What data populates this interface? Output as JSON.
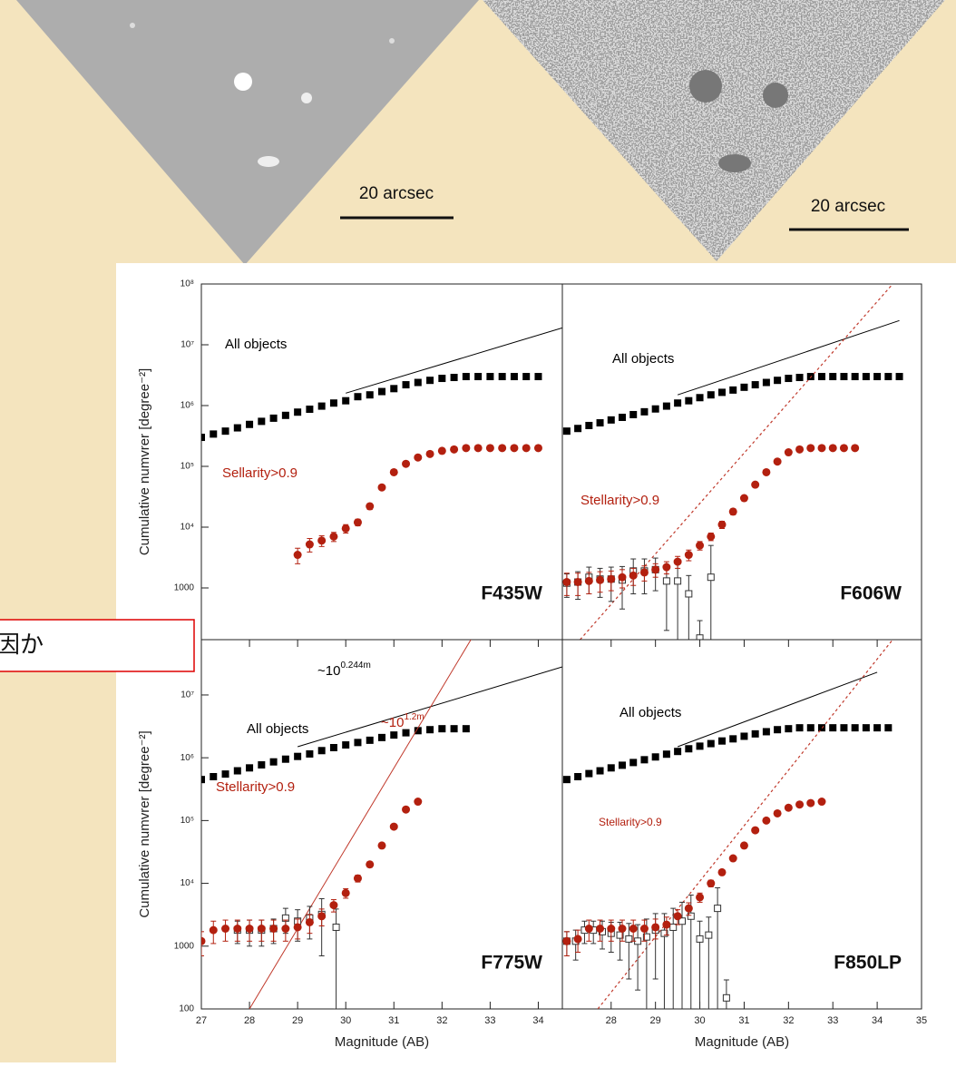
{
  "images": [
    {
      "scale_bar": "20 arcsec"
    },
    {
      "scale_bar": "20 arcsec"
    }
  ],
  "note": "因か",
  "chart_data": [
    {
      "type": "scatter",
      "log_y": true,
      "panel_label": "F435W",
      "ylabel": "Cumulative numvrer  [degree⁻²]",
      "xlim": [
        27,
        34.5
      ],
      "ylim": [
        141,
        100000000
      ],
      "yticks": [
        {
          "value": 100000000,
          "label": "10⁸"
        },
        {
          "value": 10000000,
          "label": "10⁷"
        },
        {
          "value": 1000000,
          "label": "10⁶"
        },
        {
          "value": 100000,
          "label": "10⁵"
        },
        {
          "value": 10000,
          "label": "10⁴"
        },
        1000
      ],
      "series": [
        {
          "name": "All objects",
          "color": "#000000",
          "marker": "square",
          "x": [
            27,
            27.25,
            27.5,
            27.75,
            28,
            28.25,
            28.5,
            28.75,
            29,
            29.25,
            29.5,
            29.75,
            30,
            30.25,
            30.5,
            30.75,
            31,
            31.25,
            31.5,
            31.75,
            32,
            32.25,
            32.5,
            32.75,
            33,
            33.25,
            33.5,
            33.75,
            34
          ],
          "values": [
            300000,
            340000,
            380000,
            430000,
            490000,
            550000,
            620000,
            690000,
            780000,
            870000,
            980000,
            1100000,
            1200000,
            1400000,
            1500000,
            1700000,
            1900000,
            2200000,
            2400000,
            2600000,
            2800000,
            2900000,
            3000000,
            3000000,
            3000000,
            3000000,
            3000000,
            3000000,
            3000000
          ]
        },
        {
          "color": "#000000",
          "marker": "line",
          "x": [
            30,
            34.5
          ],
          "values": [
            1600000,
            19000000
          ]
        },
        {
          "name": "Sellarity>0.9",
          "color": "#b3200f",
          "marker": "circle",
          "x": [
            29,
            29.25,
            29.5,
            29.75,
            30,
            30.25,
            30.5,
            30.75,
            31,
            31.25,
            31.5,
            31.75,
            32,
            32.25,
            32.5,
            32.75,
            33,
            33.25,
            33.5,
            33.75,
            34
          ],
          "values": [
            3500,
            5200,
            6000,
            7000,
            9500,
            12000,
            22000,
            45000,
            80000,
            110000,
            140000,
            160000,
            180000,
            190000,
            200000,
            200000,
            200000,
            200000,
            200000,
            200000,
            200000
          ],
          "errors": [
            1000,
            1300,
            1200,
            1200,
            1500,
            1500,
            2500,
            4000,
            5000,
            5000,
            5000,
            5000,
            5000,
            5000,
            5000,
            5000,
            5000,
            5000,
            5000,
            5000,
            5000
          ]
        }
      ]
    },
    {
      "type": "scatter",
      "log_y": true,
      "panel_label": "F606W",
      "xlim": [
        26.9,
        35
      ],
      "ylim": [
        141,
        100000000
      ],
      "series": [
        {
          "name": "All objects",
          "color": "#000000",
          "marker": "square",
          "x": [
            27,
            27.25,
            27.5,
            27.75,
            28,
            28.25,
            28.5,
            28.75,
            29,
            29.25,
            29.5,
            29.75,
            30,
            30.25,
            30.5,
            30.75,
            31,
            31.25,
            31.5,
            31.75,
            32,
            32.25,
            32.5,
            32.75,
            33,
            33.25,
            33.5,
            33.75,
            34,
            34.25,
            34.5
          ],
          "values": [
            380000,
            420000,
            470000,
            520000,
            580000,
            640000,
            710000,
            790000,
            880000,
            980000,
            1100000,
            1200000,
            1350000,
            1500000,
            1650000,
            1800000,
            2000000,
            2200000,
            2400000,
            2600000,
            2800000,
            2900000,
            3000000,
            3000000,
            3000000,
            3000000,
            3000000,
            3000000,
            3000000,
            3000000,
            3000000
          ]
        },
        {
          "color": "#000000",
          "marker": "line",
          "x": [
            29.5,
            34.5
          ],
          "values": [
            1500000,
            25000000
          ]
        },
        {
          "color": "#c0392b",
          "marker": "dashed",
          "x": [
            27.3,
            34.35
          ],
          "values": [
            141,
            100000000
          ]
        },
        {
          "color": "#333333",
          "marker": "open-square",
          "x": [
            27,
            27.25,
            27.5,
            27.75,
            28,
            28.25,
            28.5,
            28.75,
            29,
            29.25,
            29.5,
            29.75,
            30,
            30.25
          ],
          "values": [
            1200,
            1250,
            1500,
            1400,
            1400,
            1350,
            1900,
            1900,
            2000,
            1300,
            1300,
            800,
            150,
            1500
          ],
          "errors": [
            500,
            600,
            700,
            700,
            800,
            900,
            1100,
            1100,
            1100,
            1100,
            1500,
            800,
            140,
            3500
          ]
        },
        {
          "name": "Stellarity>0.9",
          "color": "#b3200f",
          "marker": "circle",
          "x": [
            27,
            27.25,
            27.5,
            27.75,
            28,
            28.25,
            28.5,
            28.75,
            29,
            29.25,
            29.5,
            29.75,
            30,
            30.25,
            30.5,
            30.75,
            31,
            31.25,
            31.5,
            31.75,
            32,
            32.25,
            32.5,
            32.75,
            33,
            33.25,
            33.5
          ],
          "values": [
            1250,
            1250,
            1300,
            1350,
            1400,
            1500,
            1600,
            1800,
            2000,
            2200,
            2700,
            3500,
            5000,
            7000,
            11000,
            18000,
            30000,
            50000,
            80000,
            120000,
            170000,
            190000,
            200000,
            200000,
            200000,
            200000,
            200000
          ],
          "errors": [
            500,
            500,
            500,
            500,
            500,
            500,
            500,
            500,
            500,
            500,
            600,
            700,
            800,
            1000,
            1500,
            2000,
            3000,
            4000,
            5000,
            6000,
            6000,
            6000,
            6000,
            6000,
            6000,
            6000,
            6000
          ]
        }
      ]
    },
    {
      "type": "scatter",
      "log_y": true,
      "panel_label": "F775W",
      "ylabel": "Cumulative numvrer  [degree⁻²]",
      "xlabel": "Magnitude (AB)",
      "xlim": [
        27,
        34.5
      ],
      "ylim": [
        100,
        76000000
      ],
      "yticks": [
        {
          "value": 10000000,
          "label": "10⁷"
        },
        {
          "value": 1000000,
          "label": "10⁶"
        },
        {
          "value": 100000,
          "label": "10⁵"
        },
        {
          "value": 10000,
          "label": "10⁴"
        },
        1000,
        100
      ],
      "xticks": [
        27,
        28,
        29,
        30,
        31,
        32,
        33,
        34
      ],
      "annotations": [
        {
          "text": "~10",
          "sup": "0.244m",
          "color": "#000000"
        },
        {
          "text": "~10",
          "sup": "1.2m",
          "color": "#b3200f"
        }
      ],
      "series": [
        {
          "name": "All objects",
          "color": "#000000",
          "marker": "square",
          "x": [
            27,
            27.25,
            27.5,
            27.75,
            28,
            28.25,
            28.5,
            28.75,
            29,
            29.25,
            29.5,
            29.75,
            30,
            30.25,
            30.5,
            30.75,
            31,
            31.25,
            31.5,
            31.75,
            32,
            32.25,
            32.5
          ],
          "values": [
            450000,
            500000,
            550000,
            620000,
            690000,
            770000,
            860000,
            950000,
            1050000,
            1150000,
            1300000,
            1450000,
            1600000,
            1750000,
            1900000,
            2100000,
            2300000,
            2500000,
            2700000,
            2800000,
            2900000,
            2900000,
            2900000
          ]
        },
        {
          "color": "#000000",
          "marker": "line",
          "x": [
            29,
            34.5
          ],
          "values": [
            1500000,
            28000000
          ]
        },
        {
          "color": "#c0392b",
          "marker": "line",
          "x": [
            28,
            32.6
          ],
          "values": [
            100,
            76000000
          ]
        },
        {
          "color": "#333333",
          "marker": "open-square",
          "x": [
            27.75,
            28,
            28.25,
            28.5,
            28.75,
            29,
            29.25,
            29.5,
            29.8
          ],
          "values": [
            1800,
            1800,
            1800,
            1900,
            2800,
            2500,
            2800,
            3200,
            2000
          ],
          "errors": [
            700,
            800,
            800,
            800,
            1200,
            1300,
            1500,
            2500,
            1900
          ]
        },
        {
          "name": "Stellarity>0.9",
          "color": "#b3200f",
          "marker": "circle",
          "x": [
            27,
            27.25,
            27.5,
            27.75,
            28,
            28.25,
            28.5,
            28.75,
            29,
            29.25,
            29.5,
            29.75,
            30,
            30.25,
            30.5,
            30.75,
            31,
            31.25,
            31.5
          ],
          "values": [
            1200,
            1800,
            1900,
            1900,
            1900,
            1900,
            1900,
            1900,
            2000,
            2400,
            3000,
            4500,
            7000,
            12000,
            20000,
            40000,
            80000,
            150000,
            200000
          ],
          "errors": [
            500,
            700,
            700,
            700,
            700,
            700,
            700,
            700,
            700,
            800,
            900,
            1000,
            1200,
            1500,
            2000,
            3000,
            4000,
            5000,
            6000
          ]
        }
      ]
    },
    {
      "type": "scatter",
      "log_y": true,
      "panel_label": "F850LP",
      "xlabel": "Magnitude (AB)",
      "xlim": [
        26.9,
        35
      ],
      "ylim": [
        100,
        76000000
      ],
      "xticks": [
        28,
        29,
        30,
        31,
        32,
        33,
        34,
        35
      ],
      "series": [
        {
          "name": "All objects",
          "color": "#000000",
          "marker": "square",
          "x": [
            27,
            27.25,
            27.5,
            27.75,
            28,
            28.25,
            28.5,
            28.75,
            29,
            29.25,
            29.5,
            29.75,
            30,
            30.25,
            30.5,
            30.75,
            31,
            31.25,
            31.5,
            31.75,
            32,
            32.25,
            32.5,
            32.75,
            33,
            33.25,
            33.5,
            33.75,
            34,
            34.25
          ],
          "values": [
            450000,
            500000,
            560000,
            620000,
            690000,
            760000,
            840000,
            930000,
            1030000,
            1140000,
            1260000,
            1390000,
            1530000,
            1680000,
            1850000,
            2000000,
            2200000,
            2400000,
            2600000,
            2800000,
            2900000,
            3000000,
            3000000,
            3000000,
            3000000,
            3000000,
            3000000,
            3000000,
            3000000,
            3000000
          ]
        },
        {
          "color": "#000000",
          "marker": "line",
          "x": [
            29.5,
            34
          ],
          "values": [
            1500000,
            23000000
          ]
        },
        {
          "color": "#c0392b",
          "marker": "dashed",
          "x": [
            27.7,
            34.35
          ],
          "values": [
            100,
            76000000
          ]
        },
        {
          "color": "#333333",
          "marker": "open-square",
          "x": [
            27,
            27.2,
            27.4,
            27.6,
            27.8,
            28,
            28.2,
            28.4,
            28.6,
            28.8,
            29,
            29.2,
            29.4,
            29.6,
            29.8,
            30,
            30.2,
            30.4,
            30.6
          ],
          "values": [
            1200,
            1200,
            1800,
            1800,
            1700,
            1600,
            1500,
            1300,
            1200,
            1400,
            1800,
            1600,
            2000,
            2500,
            3000,
            1300,
            1500,
            4000,
            150
          ],
          "errors": [
            500,
            600,
            700,
            700,
            800,
            800,
            900,
            1000,
            1000,
            1300,
            1500,
            1700,
            2000,
            2500,
            3500,
            1200,
            1400,
            4500,
            140
          ]
        },
        {
          "name": "Stellarity>0.9",
          "color": "#b3200f",
          "marker": "circle",
          "x": [
            27,
            27.25,
            27.5,
            27.75,
            28,
            28.25,
            28.5,
            28.75,
            29,
            29.25,
            29.5,
            29.75,
            30,
            30.25,
            30.5,
            30.75,
            31,
            31.25,
            31.5,
            31.75,
            32,
            32.25,
            32.5,
            32.75
          ],
          "values": [
            1200,
            1300,
            1900,
            1900,
            1900,
            1900,
            1900,
            1900,
            2000,
            2200,
            3000,
            4000,
            6000,
            10000,
            15000,
            25000,
            40000,
            70000,
            100000,
            130000,
            160000,
            180000,
            190000,
            200000
          ],
          "errors": [
            500,
            500,
            700,
            700,
            700,
            700,
            700,
            700,
            700,
            700,
            800,
            900,
            1000,
            1200,
            1500,
            2000,
            3000,
            4000,
            5000,
            5000,
            6000,
            6000,
            6000,
            6000
          ]
        }
      ]
    }
  ]
}
